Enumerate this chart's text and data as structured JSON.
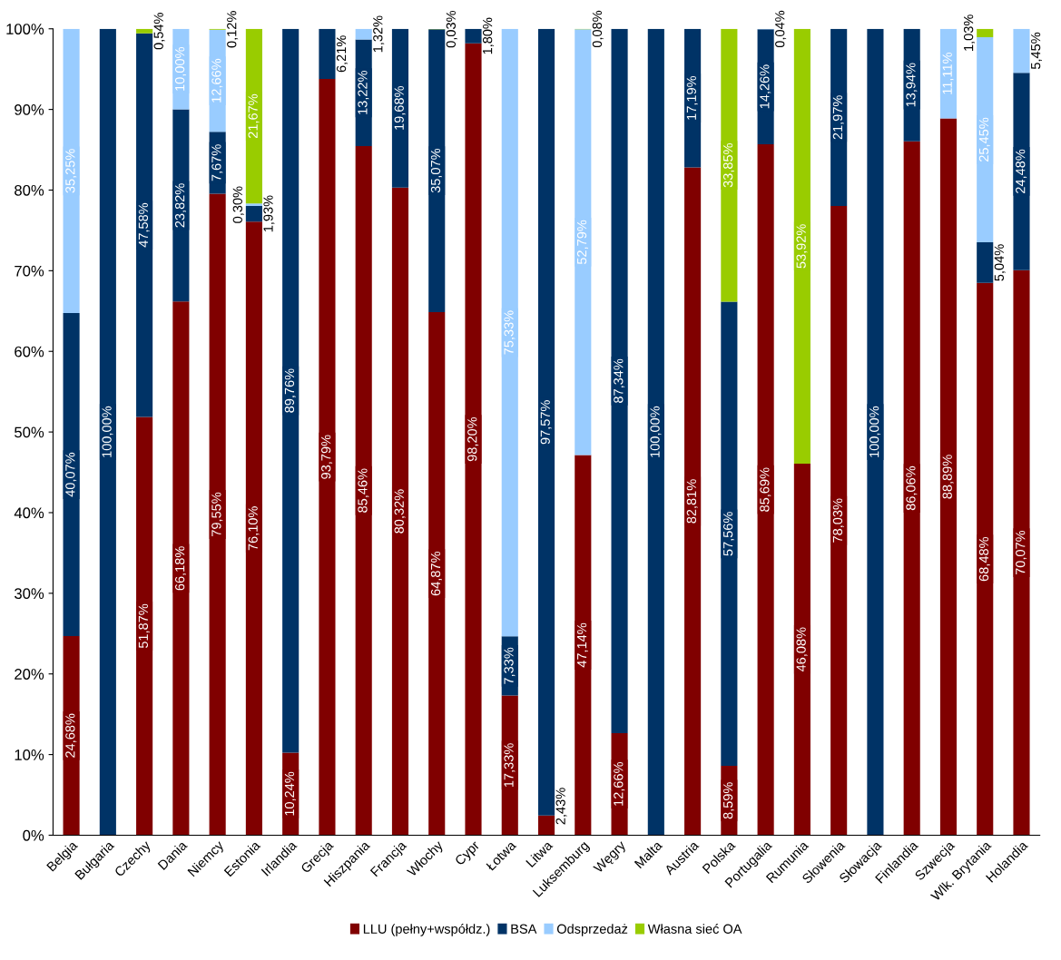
{
  "chart_data": {
    "type": "bar",
    "stacked": true,
    "categories": [
      "Belgia",
      "Bułgaria",
      "Czechy",
      "Dania",
      "Niemcy",
      "Estonia",
      "Irlandia",
      "Grecja",
      "Hiszpania",
      "Francja",
      "Włochy",
      "Cypr",
      "Łotwa",
      "Litwa",
      "Luksemburg",
      "Węgry",
      "Malta",
      "Austria",
      "Polska",
      "Portugalia",
      "Rumunia",
      "Słowenia",
      "Słowacja",
      "Finlandia",
      "Szwecja",
      "Wlk. Brytania",
      "Holandia"
    ],
    "series": [
      {
        "name": "LLU (pełny+współdz.)",
        "color": "#800000",
        "values": [
          24.68,
          null,
          51.87,
          66.18,
          79.55,
          76.1,
          10.24,
          93.79,
          85.46,
          80.32,
          64.87,
          98.2,
          17.33,
          2.43,
          47.14,
          12.66,
          null,
          82.81,
          8.59,
          85.69,
          46.08,
          78.03,
          null,
          86.06,
          88.89,
          68.48,
          70.07
        ],
        "value_labels": [
          "24,68%",
          null,
          "51,87%",
          "66,18%",
          "79,55%",
          "76,10%",
          "10,24%",
          "93,79%",
          "85,46%",
          "80,32%",
          "64,87%",
          "98,20%",
          "17,33%",
          "2,43%",
          "47,14%",
          "12,66%",
          null,
          "82,81%",
          "8,59%",
          "85,69%",
          "46,08%",
          "78,03%",
          null,
          "86,06%",
          "88,89%",
          "68,48%",
          "70,07%"
        ]
      },
      {
        "name": "BSA",
        "color": "#003366",
        "values": [
          40.07,
          100,
          47.58,
          23.82,
          7.67,
          1.93,
          89.76,
          6.21,
          13.22,
          19.68,
          35.07,
          1.8,
          7.33,
          97.57,
          null,
          87.34,
          100,
          17.19,
          57.56,
          14.26,
          null,
          21.97,
          100,
          13.94,
          null,
          5.04,
          24.48
        ],
        "value_labels": [
          "40,07%",
          "100,00%",
          "47,58%",
          "23,82%",
          "7,67%",
          "1,93%",
          "89,76%",
          "6,21%",
          "13,22%",
          "19,68%",
          "35,07%",
          "1,80%",
          "7,33%",
          "97,57%",
          null,
          "87,34%",
          "100,00%",
          "17,19%",
          "57,56%",
          "14,26%",
          null,
          "21,97%",
          "100,00%",
          "13,94%",
          null,
          "5,04%",
          "24,48%"
        ]
      },
      {
        "name": "Odsprzedaż",
        "color": "#99ccff",
        "values": [
          35.25,
          null,
          null,
          10.0,
          12.66,
          0.3,
          null,
          null,
          1.32,
          null,
          null,
          null,
          75.33,
          null,
          52.79,
          null,
          null,
          null,
          null,
          0.04,
          null,
          null,
          null,
          null,
          11.11,
          25.45,
          5.45
        ],
        "value_labels": [
          "35,25%",
          null,
          null,
          "10,00%",
          "12,66%",
          "0,30%",
          null,
          null,
          "1,32%",
          null,
          null,
          null,
          "75,33%",
          null,
          "52,79%",
          null,
          null,
          null,
          null,
          "0,04%",
          null,
          null,
          null,
          null,
          "11,11%",
          "25,45%",
          "5,45%"
        ]
      },
      {
        "name": "Własna sieć OA",
        "color": "#99cc00",
        "values": [
          null,
          null,
          0.54,
          null,
          0.12,
          21.67,
          null,
          null,
          null,
          null,
          0.03,
          null,
          null,
          null,
          0.08,
          null,
          null,
          null,
          33.85,
          null,
          53.92,
          null,
          null,
          null,
          null,
          1.03,
          null
        ],
        "value_labels": [
          null,
          null,
          "0,54%",
          null,
          "0,12%",
          "21,67%",
          null,
          null,
          null,
          null,
          "0,03%",
          null,
          null,
          null,
          "0,08%",
          null,
          null,
          null,
          "33,85%",
          null,
          "53,92%",
          null,
          null,
          null,
          null,
          "1,03%",
          null
        ]
      }
    ],
    "ylim": [
      0,
      100
    ],
    "yticks": [
      {
        "value": 0,
        "label": "0%"
      },
      {
        "value": 10,
        "label": "10%"
      },
      {
        "value": 20,
        "label": "20%"
      },
      {
        "value": 30,
        "label": "30%"
      },
      {
        "value": 40,
        "label": "40%"
      },
      {
        "value": 50,
        "label": "50%"
      },
      {
        "value": 60,
        "label": "60%"
      },
      {
        "value": 70,
        "label": "70%"
      },
      {
        "value": 80,
        "label": "80%"
      },
      {
        "value": 90,
        "label": "90%"
      },
      {
        "value": 100,
        "label": "100%"
      }
    ],
    "legend": "bottom",
    "grid": false
  }
}
